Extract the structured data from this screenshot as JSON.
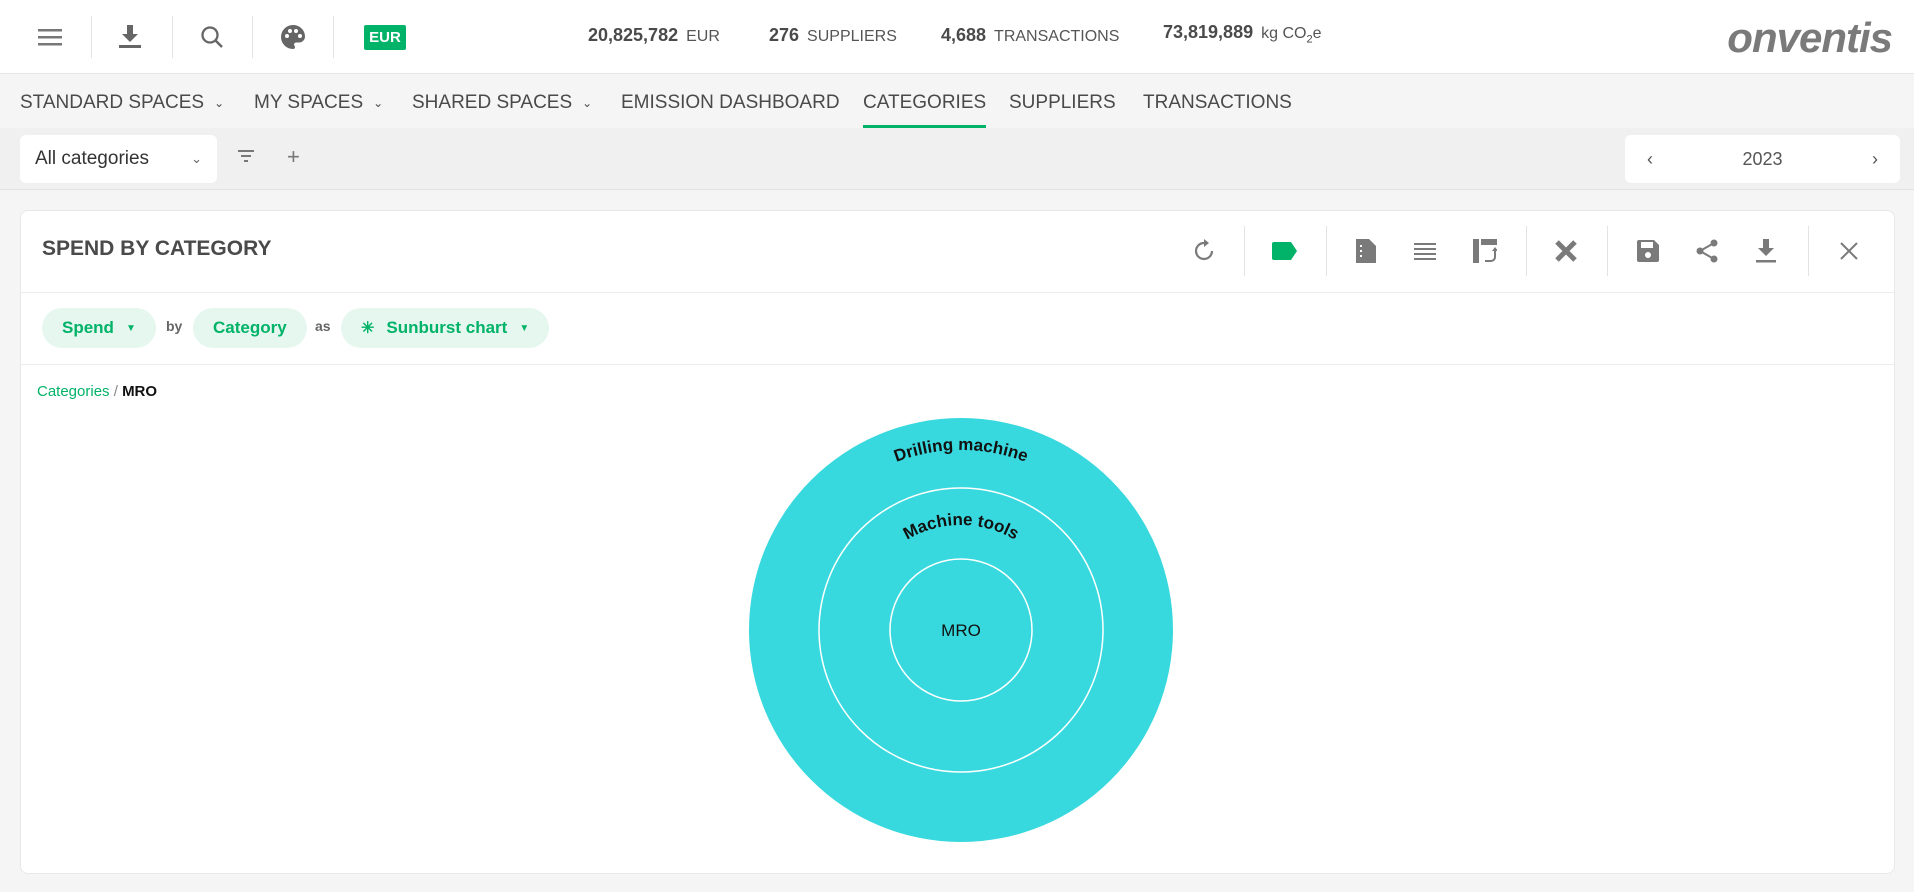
{
  "header": {
    "icons": [
      "menu-icon",
      "download-icon",
      "search-icon",
      "palette-icon"
    ],
    "currency_badge": "EUR",
    "stats": [
      {
        "value": "20,825,782",
        "unit": "EUR"
      },
      {
        "value": "276",
        "unit": "SUPPLIERS"
      },
      {
        "value": "4,688",
        "unit": "TRANSACTIONS"
      },
      {
        "value": "73,819,889",
        "unit": "kg CO",
        "unit_sub": "2",
        "unit_suffix": "e"
      }
    ],
    "logo": "onventis"
  },
  "nav": {
    "items": [
      {
        "label": "STANDARD SPACES",
        "dropdown": true
      },
      {
        "label": "MY SPACES",
        "dropdown": true
      },
      {
        "label": "SHARED SPACES",
        "dropdown": true
      },
      {
        "label": "EMISSION DASHBOARD"
      },
      {
        "label": "CATEGORIES",
        "active": true
      },
      {
        "label": "SUPPLIERS"
      },
      {
        "label": "TRANSACTIONS"
      }
    ]
  },
  "filter": {
    "category_select": "All categories",
    "year": "2023"
  },
  "card": {
    "title": "SPEND BY CATEGORY",
    "toolbar": [
      "refresh-icon",
      "label-icon",
      "report-icon",
      "list-icon",
      "swap-icon",
      "tools-icon",
      "save-icon",
      "share-icon",
      "download-icon",
      "close-icon"
    ],
    "measure": "Spend",
    "by_label": "by",
    "dimension": "Category",
    "as_label": "as",
    "chart_type": "Sunburst chart",
    "breadcrumb": {
      "root": "Categories",
      "separator": "/",
      "current": "MRO"
    }
  },
  "colors": {
    "accent": "#00b368",
    "sunburst": "#38d9de"
  },
  "chart_data": {
    "type": "sunburst",
    "rings": [
      {
        "level": 1,
        "label": "MRO",
        "share": 1
      },
      {
        "level": 2,
        "label": "Machine tools",
        "share": 1
      },
      {
        "level": 3,
        "label": "Drilling machine",
        "share": 1
      }
    ]
  }
}
